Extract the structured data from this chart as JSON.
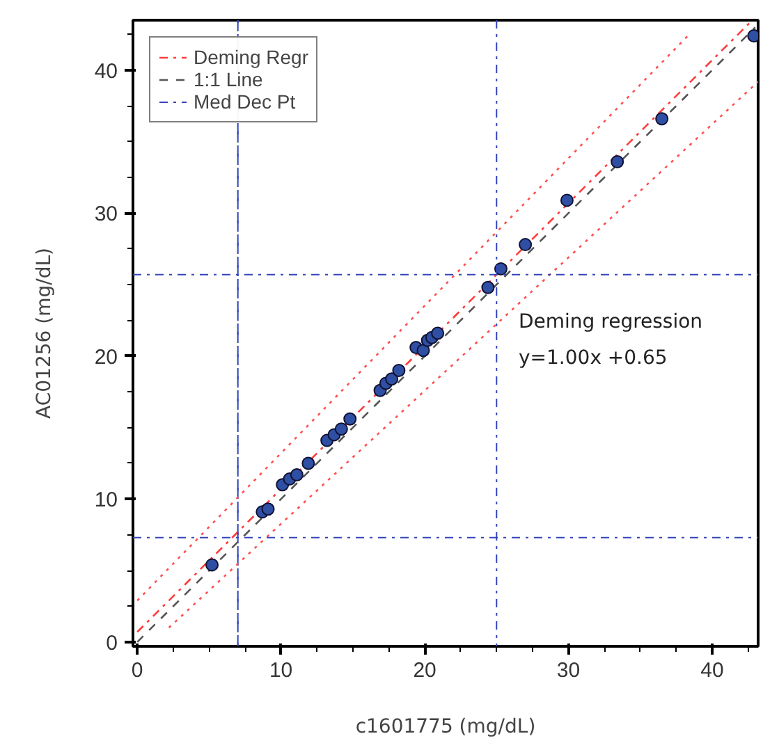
{
  "chart_data": {
    "type": "scatter",
    "xlabel": "c1601775 (mg/dL)",
    "ylabel": "AC01256 (mg/dL)",
    "xlim": [
      -0.3,
      43.2
    ],
    "ylim": [
      -0.3,
      43.5
    ],
    "xticks": [
      0,
      10,
      20,
      30,
      40
    ],
    "yticks": [
      0,
      10,
      20,
      30,
      40
    ],
    "grid": false,
    "legend": "top left",
    "marker": "circle",
    "series": [
      {
        "name": "Deming Regr",
        "type": "line",
        "line_style": "dashdot",
        "color": "#ff3b3b",
        "marker": "none",
        "x": [
          0,
          42.8
        ],
        "values": [
          0.7,
          43.5
        ]
      },
      {
        "type": "line",
        "line_style": "dotted",
        "color": "#ff5050",
        "marker": "none",
        "x": [
          0,
          38.4
        ],
        "values": [
          2.9,
          42.5
        ]
      },
      {
        "type": "line",
        "line_style": "dotted",
        "color": "#ff5050",
        "marker": "none",
        "x": [
          2.2,
          43.2
        ],
        "values": [
          1.0,
          39.2
        ]
      },
      {
        "name": "1:1 Line",
        "type": "line",
        "line_style": "dashed",
        "color": "#555555",
        "marker": "none",
        "x": [
          0,
          43
        ],
        "values": [
          0,
          43
        ]
      },
      {
        "type": "scatter",
        "color": "#2e4fa3",
        "x": [
          5.2,
          8.7,
          9.1,
          10.1,
          10.6,
          11.1,
          11.9,
          13.2,
          13.7,
          14.2,
          14.8,
          16.9,
          17.3,
          17.7,
          18.2,
          19.4,
          19.9,
          20.2,
          20.5,
          20.9,
          24.4,
          25.3,
          27.0,
          29.9,
          33.4,
          36.5,
          42.9
        ],
        "values": [
          5.4,
          9.1,
          9.3,
          11.0,
          11.4,
          11.7,
          12.5,
          14.1,
          14.5,
          14.9,
          15.6,
          17.6,
          18.1,
          18.4,
          19.0,
          20.6,
          20.4,
          21.1,
          21.3,
          21.6,
          24.8,
          26.1,
          27.8,
          30.9,
          33.6,
          36.6,
          42.4
        ]
      }
    ],
    "ref_lines": [
      {
        "axis": "x",
        "value": 7.0,
        "label": "Med Dec Pt",
        "color": "#3344bb",
        "line_style": "dashdot"
      },
      {
        "axis": "x",
        "value": 25.0,
        "color": "#3344bb",
        "line_style": "dashdot"
      },
      {
        "axis": "y",
        "value": 7.3,
        "color": "#3344bb",
        "line_style": "dashdot"
      },
      {
        "axis": "y",
        "value": 25.7,
        "color": "#3344bb",
        "line_style": "dashdot"
      }
    ],
    "annotations": [
      "Deming regression",
      "y=1.00x +0.65"
    ]
  }
}
